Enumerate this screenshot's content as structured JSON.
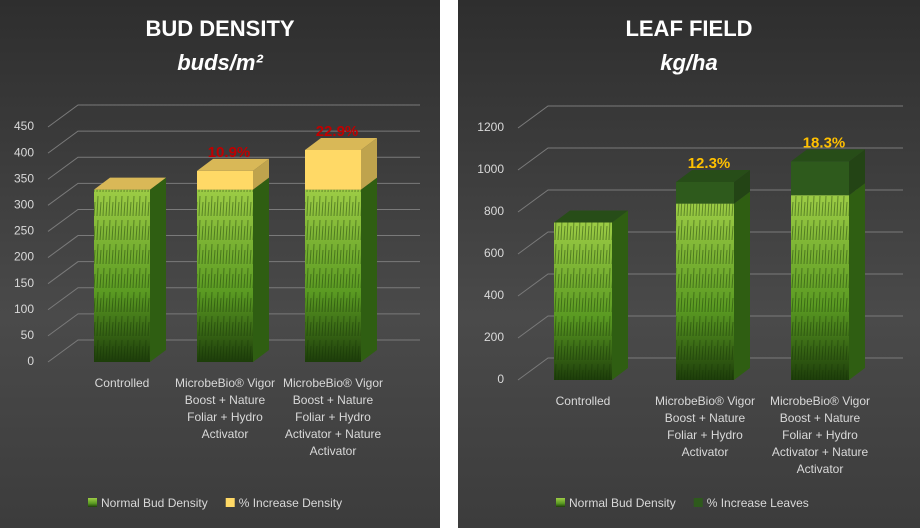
{
  "chart_data": [
    {
      "type": "bar3d",
      "title": "BUD DENSITY",
      "subtitle": "buds/m²",
      "categories": [
        "Controlled",
        "MicrobeBio® Vigor Boost + Nature Foliar + Hydro Activator",
        "MicrobeBio® Vigor Boost + Nature Foliar + Hydro Activator + Nature Activator"
      ],
      "series": [
        {
          "name": "Normal Bud Density",
          "color": "#6aa82a",
          "values": [
            330,
            330,
            330
          ]
        },
        {
          "name": "% Increase Density",
          "color": "#ffd966",
          "values": [
            0,
            36,
            76
          ]
        }
      ],
      "percent_increase": [
        null,
        10.9,
        22.9
      ],
      "percent_labels": [
        null,
        "10.9%",
        "22.9%"
      ],
      "label_color": "#c00000",
      "ylim": [
        0,
        450
      ],
      "yticks": [
        0,
        50,
        100,
        150,
        200,
        250,
        300,
        350,
        400,
        450
      ],
      "grid": true,
      "legend": "bottom"
    },
    {
      "type": "bar3d",
      "title": "LEAF FIELD",
      "subtitle": "kg/ha",
      "categories": [
        "Controlled",
        "MicrobeBio® Vigor Boost + Nature Foliar + Hydro Activator",
        "MicrobeBio® Vigor Boost + Nature Foliar + Hydro Activator + Nature Activator"
      ],
      "series": [
        {
          "name": "Normal Bud Density",
          "color": "#6aa82a",
          "values": [
            750,
            840,
            880
          ]
        },
        {
          "name": "% Increase Leaves",
          "color": "#2e5a1c",
          "values": [
            0,
            103,
            161
          ]
        }
      ],
      "percent_increase": [
        null,
        12.3,
        18.3
      ],
      "percent_labels": [
        null,
        "12.3%",
        "18.3%"
      ],
      "label_color": "#ffc000",
      "ylim": [
        0,
        1200
      ],
      "yticks": [
        0,
        200,
        400,
        600,
        800,
        1000,
        1200
      ],
      "grid": true,
      "legend": "bottom"
    }
  ]
}
